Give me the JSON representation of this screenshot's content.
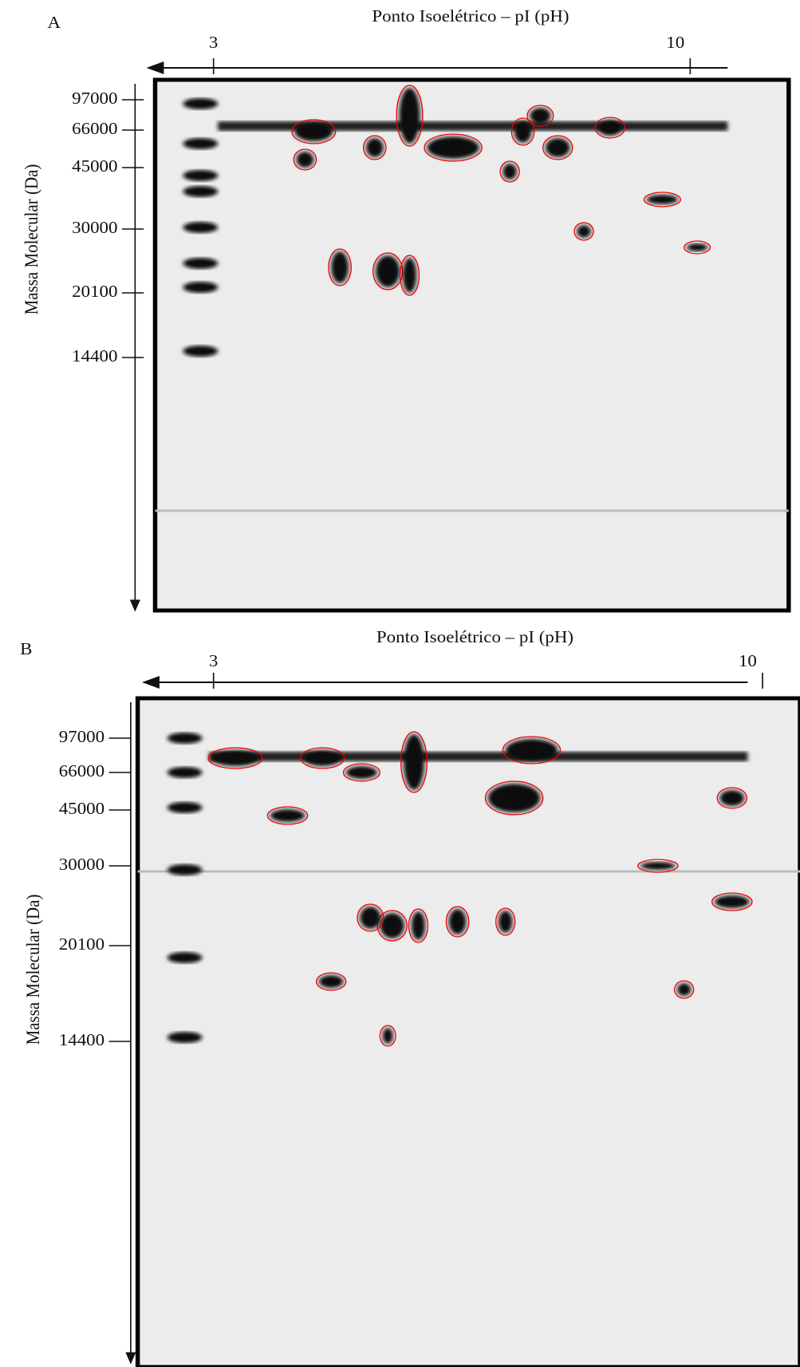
{
  "panels": [
    {
      "label": "A",
      "x_title": "Ponto Isoelétrico – pI (pH)",
      "x_ticks": [
        "3",
        "10"
      ],
      "y_title": "Massa Molecular (Da)",
      "y_ticks": [
        "97000",
        "66000",
        "45000",
        "30000",
        "20100",
        "14400"
      ]
    },
    {
      "label": "B",
      "x_title": "Ponto Isoelétrico – pI (pH)",
      "x_ticks": [
        "3",
        "10"
      ],
      "y_title": "Massa Molecular (Da)",
      "y_ticks": [
        "97000",
        "66000",
        "45000",
        "30000",
        "20100",
        "14400"
      ]
    }
  ]
}
